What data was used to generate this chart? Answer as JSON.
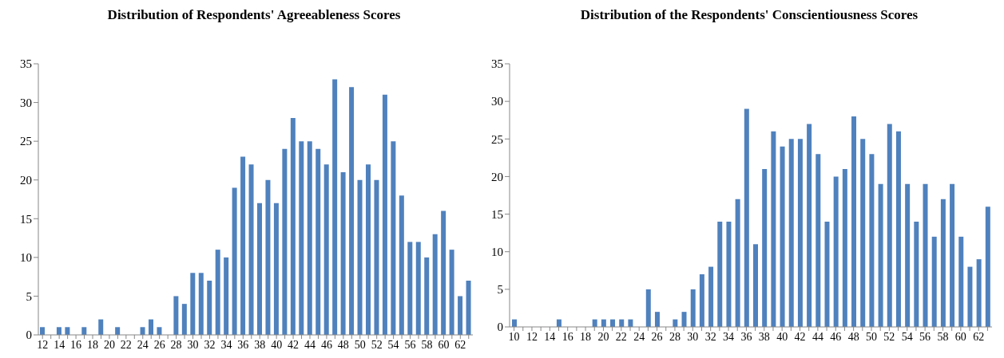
{
  "chart_data": [
    {
      "type": "bar",
      "title": "Distribution of Respondents' Agreeableness Scores",
      "color": "#4f81bd",
      "ylim": [
        0,
        35
      ],
      "yticks": [
        0,
        5,
        10,
        15,
        20,
        25,
        30,
        35
      ],
      "categories": [
        "12",
        null,
        "14",
        null,
        "16",
        null,
        "18",
        null,
        "20",
        null,
        "22",
        null,
        "24",
        null,
        "26",
        null,
        "28",
        null,
        "30",
        null,
        "32",
        null,
        "34",
        null,
        "36",
        null,
        "38",
        null,
        "40",
        null,
        "42",
        null,
        "44",
        null,
        "46",
        null,
        "48",
        null,
        "50",
        null,
        "52",
        null,
        "54",
        null,
        "56",
        null,
        "58",
        null,
        "60",
        null,
        "62",
        null
      ],
      "values": [
        1,
        0,
        1,
        1,
        0,
        1,
        0,
        2,
        0,
        1,
        0,
        0,
        1,
        2,
        1,
        0,
        5,
        4,
        8,
        8,
        7,
        11,
        10,
        19,
        23,
        22,
        17,
        20,
        17,
        24,
        28,
        25,
        25,
        24,
        22,
        33,
        21,
        32,
        20,
        22,
        20,
        31,
        25,
        18,
        12,
        12,
        10,
        13,
        16,
        11,
        5,
        7
      ]
    },
    {
      "type": "bar",
      "title": "Distribution of the Respondents' Conscientiousness Scores",
      "color": "#4f81bd",
      "ylim": [
        0,
        35
      ],
      "yticks": [
        0,
        5,
        10,
        15,
        20,
        25,
        30,
        35
      ],
      "categories": [
        "10",
        null,
        "12",
        null,
        "14",
        null,
        "16",
        null,
        "18",
        null,
        "20",
        null,
        "22",
        null,
        "24",
        null,
        "26",
        null,
        "28",
        null,
        "30",
        null,
        "32",
        null,
        "34",
        null,
        "36",
        null,
        "38",
        null,
        "40",
        null,
        "42",
        null,
        "44",
        null,
        "46",
        null,
        "48",
        null,
        "50",
        null,
        "52",
        null,
        "54",
        null,
        "56",
        null,
        "58",
        null,
        "60",
        null,
        "62",
        null
      ],
      "values": [
        1,
        0,
        0,
        0,
        0,
        1,
        0,
        0,
        0,
        1,
        1,
        1,
        1,
        1,
        0,
        5,
        2,
        0,
        1,
        2,
        5,
        7,
        8,
        14,
        14,
        17,
        29,
        11,
        21,
        26,
        24,
        25,
        25,
        27,
        23,
        14,
        20,
        21,
        28,
        25,
        23,
        19,
        27,
        26,
        19,
        14,
        19,
        12,
        17,
        19,
        12,
        8,
        9,
        16
      ]
    }
  ]
}
